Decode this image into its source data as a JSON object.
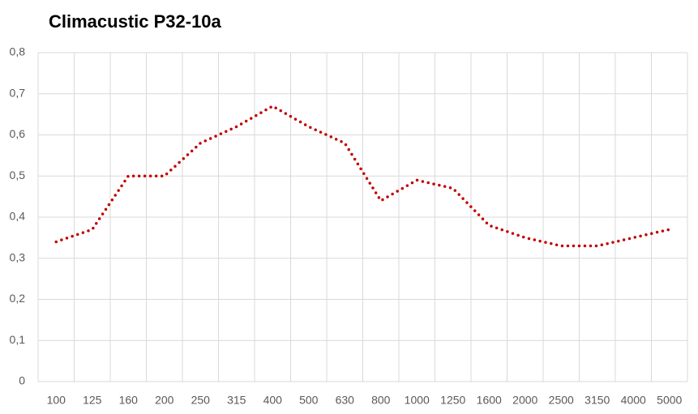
{
  "chart_data": {
    "type": "line",
    "title": "Climacustic P32-10a",
    "categories": [
      "100",
      "125",
      "160",
      "200",
      "250",
      "315",
      "400",
      "500",
      "630",
      "800",
      "1000",
      "1250",
      "1600",
      "2000",
      "2500",
      "3150",
      "4000",
      "5000"
    ],
    "series": [
      {
        "color": "#c00000",
        "values": [
          0.34,
          0.37,
          0.5,
          0.5,
          0.58,
          0.62,
          0.67,
          0.62,
          0.58,
          0.44,
          0.49,
          0.47,
          0.38,
          0.35,
          0.33,
          0.33,
          0.35,
          0.37
        ]
      }
    ],
    "ylim": [
      0,
      0.8
    ],
    "yticks": [
      0,
      {
        "value": 0.1,
        "label": "0,1"
      },
      {
        "value": 0.2,
        "label": "0,2"
      },
      {
        "value": 0.3,
        "label": "0,3"
      },
      {
        "value": 0.4,
        "label": "0,4"
      },
      {
        "value": 0.5,
        "label": "0,5"
      },
      {
        "value": 0.6,
        "label": "0,6"
      },
      {
        "value": 0.7,
        "label": "0,7"
      },
      {
        "value": 0.8,
        "label": "0,8"
      }
    ],
    "grid": true
  }
}
